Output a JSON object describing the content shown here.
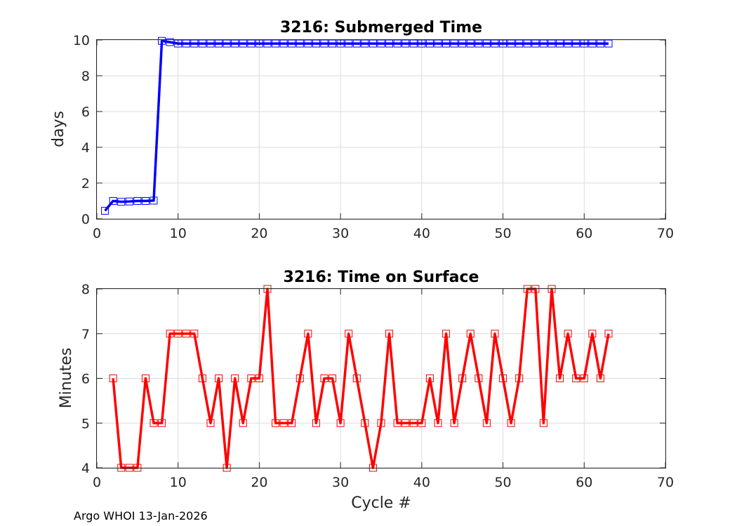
{
  "footer": "Argo WHOI 13-Jan-2026",
  "chart_data": [
    {
      "type": "line",
      "title": "3216: Submerged Time",
      "xlabel": "",
      "ylabel": "days",
      "xlim": [
        0,
        70
      ],
      "ylim": [
        0,
        10
      ],
      "xticks": [
        0,
        10,
        20,
        30,
        40,
        50,
        60,
        70
      ],
      "yticks": [
        0,
        2,
        4,
        6,
        8,
        10
      ],
      "grid": true,
      "color": "#0000ff",
      "marker": "square",
      "series": [
        {
          "name": "Submerged Time",
          "x": [
            1,
            2,
            3,
            4,
            5,
            6,
            7,
            8,
            9,
            10,
            11,
            12,
            13,
            14,
            15,
            16,
            17,
            18,
            19,
            20,
            21,
            22,
            23,
            24,
            25,
            26,
            27,
            28,
            29,
            30,
            31,
            32,
            33,
            34,
            35,
            36,
            37,
            38,
            39,
            40,
            41,
            42,
            43,
            44,
            45,
            46,
            47,
            48,
            49,
            50,
            51,
            52,
            53,
            54,
            55,
            56,
            57,
            58,
            59,
            60,
            61,
            62,
            63
          ],
          "values": [
            0.45,
            1.0,
            0.95,
            0.97,
            1.0,
            1.0,
            1.02,
            9.95,
            9.88,
            9.8,
            9.8,
            9.8,
            9.8,
            9.8,
            9.8,
            9.8,
            9.8,
            9.8,
            9.8,
            9.8,
            9.8,
            9.8,
            9.8,
            9.8,
            9.8,
            9.8,
            9.8,
            9.8,
            9.8,
            9.8,
            9.8,
            9.8,
            9.8,
            9.8,
            9.8,
            9.8,
            9.8,
            9.8,
            9.8,
            9.8,
            9.8,
            9.8,
            9.8,
            9.8,
            9.8,
            9.8,
            9.8,
            9.8,
            9.8,
            9.8,
            9.8,
            9.8,
            9.8,
            9.8,
            9.8,
            9.8,
            9.8,
            9.8,
            9.8,
            9.8,
            9.8,
            9.8,
            9.8
          ]
        }
      ]
    },
    {
      "type": "line",
      "title": "3216: Time on Surface",
      "xlabel": "Cycle #",
      "ylabel": "Minutes",
      "xlim": [
        0,
        70
      ],
      "ylim": [
        4,
        8
      ],
      "xticks": [
        0,
        10,
        20,
        30,
        40,
        50,
        60,
        70
      ],
      "yticks": [
        4,
        5,
        6,
        7,
        8
      ],
      "grid": true,
      "color": "#ff0000",
      "marker": "square",
      "series": [
        {
          "name": "Time on Surface",
          "x": [
            2,
            3,
            4,
            5,
            6,
            7,
            8,
            9,
            10,
            11,
            12,
            13,
            14,
            15,
            16,
            17,
            18,
            19,
            20,
            21,
            22,
            23,
            24,
            25,
            26,
            27,
            28,
            29,
            30,
            31,
            32,
            33,
            34,
            35,
            36,
            37,
            38,
            39,
            40,
            41,
            42,
            43,
            44,
            45,
            46,
            47,
            48,
            49,
            50,
            51,
            52,
            53,
            54,
            55,
            56,
            57,
            58,
            59,
            60,
            61,
            62,
            63
          ],
          "values": [
            6,
            4,
            4,
            4,
            6,
            5,
            5,
            7,
            7,
            7,
            7,
            6,
            5,
            6,
            4,
            6,
            5,
            6,
            6,
            8,
            5,
            5,
            5,
            6,
            7,
            5,
            6,
            6,
            5,
            7,
            6,
            5,
            4,
            5,
            7,
            5,
            5,
            5,
            5,
            6,
            5,
            7,
            5,
            6,
            7,
            6,
            5,
            7,
            6,
            5,
            6,
            8,
            8,
            5,
            8,
            6,
            7,
            6,
            6,
            7,
            6,
            7
          ]
        }
      ]
    }
  ]
}
